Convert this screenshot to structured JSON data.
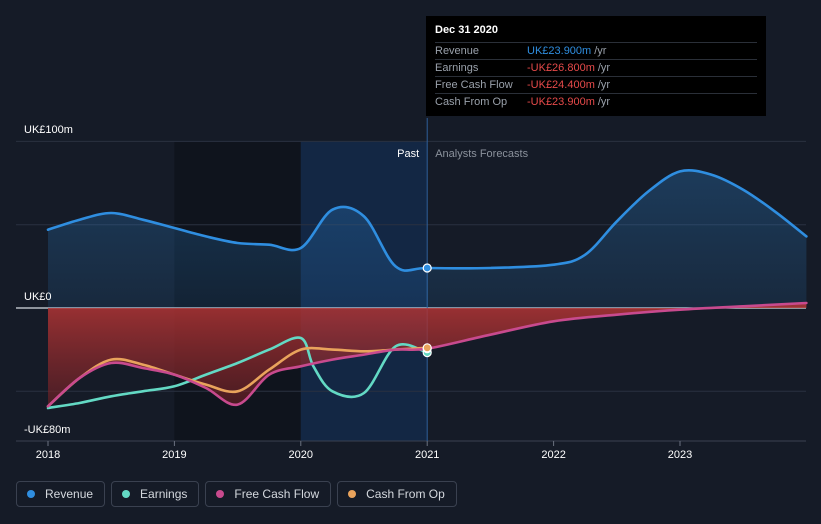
{
  "tooltip": {
    "date": "Dec 31 2020",
    "rows": [
      {
        "label": "Revenue",
        "value": "UK£23.900m",
        "unit": "/yr",
        "color": "#2f8ee0"
      },
      {
        "label": "Earnings",
        "value": "-UK£26.800m",
        "unit": "/yr",
        "color": "#e64a4a"
      },
      {
        "label": "Free Cash Flow",
        "value": "-UK£24.400m",
        "unit": "/yr",
        "color": "#e64a4a"
      },
      {
        "label": "Cash From Op",
        "value": "-UK£23.900m",
        "unit": "/yr",
        "color": "#e64a4a"
      }
    ]
  },
  "section_labels": {
    "past": "Past",
    "forecast": "Analysts Forecasts"
  },
  "legend": [
    {
      "label": "Revenue",
      "color": "#2f8ee0"
    },
    {
      "label": "Earnings",
      "color": "#63d9c4"
    },
    {
      "label": "Free Cash Flow",
      "color": "#c84a8e"
    },
    {
      "label": "Cash From Op",
      "color": "#e9a35c"
    }
  ],
  "chart_data": {
    "type": "line",
    "title": "",
    "xlabel": "",
    "ylabel": "",
    "x_ticks": [
      "2018",
      "2019",
      "2020",
      "2021",
      "2022",
      "2023"
    ],
    "y_tick_labels": [
      {
        "value": 100,
        "label": "UK£100m"
      },
      {
        "value": 0,
        "label": "UK£0"
      },
      {
        "value": -80,
        "label": "-UK£80m"
      }
    ],
    "ylim": [
      -80,
      100
    ],
    "xlim": [
      2018.0,
      2024.0
    ],
    "past_end": 2021.0,
    "grid": true,
    "series": [
      {
        "name": "Revenue",
        "color": "#2f8ee0",
        "x": [
          2018.0,
          2018.25,
          2018.5,
          2018.75,
          2019.0,
          2019.25,
          2019.5,
          2019.75,
          2020.0,
          2020.25,
          2020.5,
          2020.75,
          2021.0,
          2021.5,
          2022.0,
          2022.25,
          2022.5,
          2022.75,
          2023.0,
          2023.25,
          2023.5,
          2023.75,
          2024.0
        ],
        "y": [
          47,
          53,
          57,
          53,
          48,
          43,
          39,
          38,
          36,
          59,
          55,
          25,
          24,
          24,
          26,
          32,
          52,
          70,
          82,
          80,
          71,
          58,
          43
        ]
      },
      {
        "name": "Earnings",
        "color": "#63d9c4",
        "x": [
          2018.0,
          2018.25,
          2018.5,
          2018.75,
          2019.0,
          2019.25,
          2019.5,
          2019.75,
          2020.0,
          2020.1,
          2020.25,
          2020.5,
          2020.75,
          2021.0
        ],
        "y": [
          -60,
          -57,
          -53,
          -50,
          -47,
          -40,
          -33,
          -25,
          -18,
          -35,
          -50,
          -51,
          -23,
          -26.8
        ]
      },
      {
        "name": "Free Cash Flow",
        "color": "#c84a8e",
        "x": [
          2018.0,
          2018.25,
          2018.5,
          2018.75,
          2019.0,
          2019.25,
          2019.5,
          2019.75,
          2020.0,
          2020.25,
          2020.5,
          2020.75,
          2021.0,
          2021.5,
          2022.0,
          2022.5,
          2023.0,
          2023.5,
          2024.0
        ],
        "y": [
          -59,
          -42,
          -33,
          -36,
          -40,
          -48,
          -58,
          -40,
          -35,
          -31,
          -28,
          -25,
          -24.4,
          -16,
          -8,
          -4,
          -1,
          1,
          3
        ]
      },
      {
        "name": "Cash From Op",
        "color": "#e9a35c",
        "x": [
          2018.0,
          2018.25,
          2018.5,
          2018.75,
          2019.0,
          2019.25,
          2019.5,
          2019.75,
          2020.0,
          2020.25,
          2020.5,
          2020.75,
          2021.0
        ],
        "y": [
          -59,
          -42,
          -31,
          -34,
          -40,
          -46,
          -50,
          -37,
          -25,
          -25,
          -26,
          -25,
          -23.9
        ]
      }
    ]
  }
}
